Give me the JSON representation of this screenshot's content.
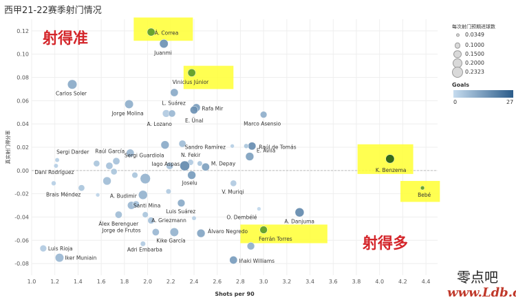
{
  "title": "西甲21-22赛季射门情况",
  "annotations": {
    "top_left": "射得准",
    "bottom_right": "射得多"
  },
  "legend_size": {
    "title": "每次射门预期进球数",
    "items": [
      "0.0349",
      "0.1000",
      "0.1500",
      "0.2000",
      "0.2323"
    ]
  },
  "legend_color": {
    "title": "Goals",
    "min": "0",
    "max": "27"
  },
  "watermark": {
    "line1": "零点吧",
    "line2": "www.Ldb.cc"
  },
  "chart_data": {
    "type": "scatter",
    "xlabel": "Shots per 90",
    "ylabel": "真实射门得分率",
    "xlim": [
      1.0,
      4.5
    ],
    "ylim": [
      -0.09,
      0.13
    ],
    "x_ticks": [
      "1.0",
      "1.2",
      "1.4",
      "1.6",
      "1.8",
      "2.0",
      "2.2",
      "2.4",
      "2.6",
      "2.8",
      "3.0",
      "3.2",
      "3.4",
      "3.6",
      "3.8",
      "4.0",
      "4.2",
      "4.4"
    ],
    "y_ticks": [
      "0.12",
      "0.10",
      "0.08",
      "0.06",
      "0.04",
      "0.02",
      "0.00",
      "-0.02",
      "-0.04",
      "-0.06",
      "-0.08"
    ],
    "color_scale": {
      "low": "#c6dcef",
      "high": "#2b5c8a",
      "highlight": "#5a9a2a"
    },
    "points": [
      {
        "name": "Á. Correa",
        "x": 2.03,
        "y": 0.119,
        "xg": 0.15,
        "goals": 9,
        "highlight": true
      },
      {
        "name": "Juanmi",
        "x": 2.14,
        "y": 0.109,
        "xg": 0.17,
        "goals": 16
      },
      {
        "name": "Vinicius Júnior",
        "x": 2.38,
        "y": 0.084,
        "xg": 0.15,
        "goals": 17,
        "highlight": true
      },
      {
        "name": "Carlos Soler",
        "x": 1.35,
        "y": 0.074,
        "xg": 0.19,
        "goals": 11
      },
      {
        "name": "L. Suárez",
        "x": 2.23,
        "y": 0.067,
        "xg": 0.15,
        "goals": 11
      },
      {
        "name": "Jorge Molina",
        "x": 1.84,
        "y": 0.057,
        "xg": 0.17,
        "goals": 10
      },
      {
        "name": "Rafa Mir",
        "x": 2.42,
        "y": 0.054,
        "xg": 0.15,
        "goals": 14
      },
      {
        "name": "E. Ünal",
        "x": 2.4,
        "y": 0.052,
        "xg": 0.15,
        "goals": 16
      },
      {
        "name": "A. Lozano",
        "x": 2.16,
        "y": 0.049,
        "xg": 0.14,
        "goals": 4
      },
      {
        "name": "A. Lozano 2",
        "x": 2.21,
        "y": 0.049,
        "xg": 0.13,
        "goals": 8
      },
      {
        "name": "Marco Asensio",
        "x": 3.0,
        "y": 0.048,
        "xg": 0.12,
        "goals": 10
      },
      {
        "name": "Sandro Ramírez",
        "x": 2.73,
        "y": 0.021,
        "xg": 0.05,
        "goals": 3
      },
      {
        "name": "Raúl de Tomás",
        "x": 2.9,
        "y": 0.021,
        "xg": 0.15,
        "goals": 17
      },
      {
        "name": "p_sr2",
        "x": 2.85,
        "y": 0.021,
        "xg": 0.07,
        "goals": 5
      },
      {
        "name": "Sergi Guardiola",
        "x": 2.15,
        "y": 0.022,
        "xg": 0.16,
        "goals": 11
      },
      {
        "name": "p_sg2",
        "x": 2.3,
        "y": 0.023,
        "xg": 0.13,
        "goals": 7
      },
      {
        "name": "E. Ávila",
        "x": 2.88,
        "y": 0.012,
        "xg": 0.16,
        "goals": 13
      },
      {
        "name": "Raúl García",
        "x": 1.85,
        "y": 0.015,
        "xg": 0.15,
        "goals": 8
      },
      {
        "name": "Sergi Darder",
        "x": 1.22,
        "y": 0.009,
        "xg": 0.06,
        "goals": 3
      },
      {
        "name": "p_rg2",
        "x": 1.73,
        "y": 0.008,
        "xg": 0.13,
        "goals": 6
      },
      {
        "name": "N. Fekir",
        "x": 2.37,
        "y": 0.007,
        "xg": 0.1,
        "goals": 4
      },
      {
        "name": "Iago Aspas",
        "x": 2.32,
        "y": 0.004,
        "xg": 0.2,
        "goals": 18
      },
      {
        "name": "M. Depay",
        "x": 2.5,
        "y": 0.003,
        "xg": 0.15,
        "goals": 13
      },
      {
        "name": "p_ia2",
        "x": 2.19,
        "y": 0.004,
        "xg": 0.13,
        "goals": 6
      },
      {
        "name": "p_ia3",
        "x": 2.45,
        "y": 0.006,
        "xg": 0.08,
        "goals": 5
      },
      {
        "name": "Dani Rodríguez",
        "x": 1.21,
        "y": 0.004,
        "xg": 0.06,
        "goals": 3
      },
      {
        "name": "p_dr2",
        "x": 1.56,
        "y": 0.006,
        "xg": 0.11,
        "goals": 5
      },
      {
        "name": "p_dr3",
        "x": 1.67,
        "y": 0.004,
        "xg": 0.13,
        "goals": 6
      },
      {
        "name": "Joselu",
        "x": 2.38,
        "y": -0.004,
        "xg": 0.16,
        "goals": 14
      },
      {
        "name": "p_js2",
        "x": 1.89,
        "y": -0.004,
        "xg": 0.1,
        "goals": 5
      },
      {
        "name": "p_js3",
        "x": 1.71,
        "y": -0.001,
        "xg": 0.11,
        "goals": 5
      },
      {
        "name": "p_js4",
        "x": 1.98,
        "y": -0.007,
        "xg": 0.21,
        "goals": 9
      },
      {
        "name": "p_js5",
        "x": 1.65,
        "y": -0.009,
        "xg": 0.16,
        "goals": 7
      },
      {
        "name": "K. Benzema",
        "x": 4.09,
        "y": 0.01,
        "xg": 0.17,
        "goals": 27,
        "highlight": true
      },
      {
        "name": "Bebé",
        "x": 4.37,
        "y": -0.015,
        "xg": 0.05,
        "goals": 4,
        "highlight": true
      },
      {
        "name": "V. Muriqi",
        "x": 2.74,
        "y": -0.011,
        "xg": 0.11,
        "goals": 4
      },
      {
        "name": "Brais Méndez",
        "x": 1.19,
        "y": -0.011,
        "xg": 0.07,
        "goals": 3
      },
      {
        "name": "p_bm2",
        "x": 1.43,
        "y": -0.015,
        "xg": 0.11,
        "goals": 5
      },
      {
        "name": "p_bm3",
        "x": 1.57,
        "y": -0.021,
        "xg": 0.05,
        "goals": 2
      },
      {
        "name": "A. Budimir",
        "x": 1.96,
        "y": -0.021,
        "xg": 0.18,
        "goals": 9
      },
      {
        "name": "p_ab2",
        "x": 2.18,
        "y": -0.018,
        "xg": 0.08,
        "goals": 4
      },
      {
        "name": "Santi Mina",
        "x": 1.86,
        "y": -0.03,
        "xg": 0.15,
        "goals": 8
      },
      {
        "name": "p_sm2",
        "x": 1.9,
        "y": -0.029,
        "xg": 0.12,
        "goals": 6
      },
      {
        "name": "Luis Suárez",
        "x": 2.29,
        "y": -0.028,
        "xg": 0.14,
        "goals": 11
      },
      {
        "name": "O. Dembélé",
        "x": 2.96,
        "y": -0.033,
        "xg": 0.05,
        "goals": 1
      },
      {
        "name": "A. Danjuma",
        "x": 3.31,
        "y": -0.036,
        "xg": 0.18,
        "goals": 18
      },
      {
        "name": "Álex Berenguer",
        "x": 1.75,
        "y": -0.038,
        "xg": 0.13,
        "goals": 7
      },
      {
        "name": "A. Griezmann",
        "x": 1.98,
        "y": -0.038,
        "xg": 0.1,
        "goals": 5
      },
      {
        "name": "p_ag2",
        "x": 2.4,
        "y": -0.041,
        "xg": 0.06,
        "goals": 3
      },
      {
        "name": "p_ag3",
        "x": 2.03,
        "y": -0.043,
        "xg": 0.12,
        "goals": 6
      },
      {
        "name": "Jorge de Frutos",
        "x": 2.07,
        "y": -0.053,
        "xg": 0.13,
        "goals": 8
      },
      {
        "name": "Kike García",
        "x": 2.23,
        "y": -0.053,
        "xg": 0.17,
        "goals": 9
      },
      {
        "name": "Álvaro Negredo",
        "x": 2.46,
        "y": -0.054,
        "xg": 0.16,
        "goals": 12
      },
      {
        "name": "Ferrán Torres",
        "x": 3.0,
        "y": -0.051,
        "xg": 0.14,
        "goals": 8,
        "highlight": true
      },
      {
        "name": "Adri Embarba",
        "x": 1.96,
        "y": -0.063,
        "xg": 0.08,
        "goals": 4
      },
      {
        "name": "p_ft2",
        "x": 2.89,
        "y": -0.065,
        "xg": 0.14,
        "goals": 10
      },
      {
        "name": "Luis Rioja",
        "x": 1.1,
        "y": -0.067,
        "xg": 0.12,
        "goals": 4
      },
      {
        "name": "Iker Muniain",
        "x": 1.24,
        "y": -0.075,
        "xg": 0.17,
        "goals": 8
      },
      {
        "name": "Iñaki Williams",
        "x": 2.74,
        "y": -0.077,
        "xg": 0.15,
        "goals": 14
      }
    ],
    "labels": [
      {
        "text": "Á. Correa",
        "x": 2.03,
        "y": 0.119,
        "dx": 5,
        "dy": 4
      },
      {
        "text": "Juanmi",
        "x": 2.14,
        "y": 0.109,
        "dx": -14,
        "dy": 16
      },
      {
        "text": "Vinicius Júnior",
        "x": 2.38,
        "y": 0.084,
        "dx": -28,
        "dy": 16
      },
      {
        "text": "Carlos Soler",
        "x": 1.35,
        "y": 0.074,
        "dx": -24,
        "dy": 16
      },
      {
        "text": "L. Suárez",
        "x": 2.23,
        "y": 0.067,
        "dx": -18,
        "dy": 18
      },
      {
        "text": "Jorge Molina",
        "x": 1.84,
        "y": 0.057,
        "dx": -25,
        "dy": 16
      },
      {
        "text": "Rafa Mir",
        "x": 2.42,
        "y": 0.054,
        "dx": 8,
        "dy": 4
      },
      {
        "text": "E. Ünal",
        "x": 2.4,
        "y": 0.052,
        "dx": -13,
        "dy": 18
      },
      {
        "text": "A. Lozano",
        "x": 2.16,
        "y": 0.049,
        "dx": -28,
        "dy": 18
      },
      {
        "text": "Marco Asensio",
        "x": 3.0,
        "y": 0.048,
        "dx": -29,
        "dy": 16
      },
      {
        "text": "Sandro Ramírez",
        "x": 2.73,
        "y": 0.021,
        "dx": -69,
        "dy": 4
      },
      {
        "text": "Raúl de Tomás",
        "x": 2.9,
        "y": 0.021,
        "dx": 10,
        "dy": 4
      },
      {
        "text": "Sergi Guardiola",
        "x": 2.15,
        "y": 0.022,
        "dx": -59,
        "dy": 18
      },
      {
        "text": "E. Ávila",
        "x": 2.88,
        "y": 0.012,
        "dx": 10,
        "dy": -6
      },
      {
        "text": "Raúl García",
        "x": 1.85,
        "y": 0.015,
        "dx": -51,
        "dy": 0
      },
      {
        "text": "Sergi Darder",
        "x": 1.22,
        "y": 0.009,
        "dx": -1,
        "dy": -9
      },
      {
        "text": "N. Fekir",
        "x": 2.37,
        "y": 0.007,
        "dx": -14,
        "dy": -8
      },
      {
        "text": "Iago Aspas",
        "x": 2.32,
        "y": 0.004,
        "dx": -48,
        "dy": 0
      },
      {
        "text": "M. Depay",
        "x": 2.5,
        "y": 0.003,
        "dx": 8,
        "dy": -2
      },
      {
        "text": "Dani Rodríguez",
        "x": 1.21,
        "y": 0.004,
        "dx": -31,
        "dy": 12
      },
      {
        "text": "Joselu",
        "x": 2.38,
        "y": -0.004,
        "dx": -14,
        "dy": 14
      },
      {
        "text": "K. Benzema",
        "x": 4.09,
        "y": 0.01,
        "dx": -21,
        "dy": 19
      },
      {
        "text": "Bebé",
        "x": 4.37,
        "y": -0.015,
        "dx": -7,
        "dy": 13
      },
      {
        "text": "V. Muriqi",
        "x": 2.74,
        "y": -0.011,
        "dx": -17,
        "dy": 15
      },
      {
        "text": "Brais Méndez",
        "x": 1.19,
        "y": -0.011,
        "dx": -11,
        "dy": 19
      },
      {
        "text": "A. Budimir",
        "x": 1.96,
        "y": -0.021,
        "dx": -48,
        "dy": 4
      },
      {
        "text": "Santi Mina",
        "x": 1.86,
        "y": -0.03,
        "dx": 3,
        "dy": 3
      },
      {
        "text": "Luis Suárez",
        "x": 2.29,
        "y": -0.028,
        "dx": -22,
        "dy": 15
      },
      {
        "text": "O. Dembélé",
        "x": 2.96,
        "y": -0.033,
        "dx": -47,
        "dy": 15
      },
      {
        "text": "A. Danjuma",
        "x": 3.31,
        "y": -0.036,
        "dx": -22,
        "dy": 16
      },
      {
        "text": "Álex Berenguer",
        "x": 1.75,
        "y": -0.038,
        "dx": -29,
        "dy": 16
      },
      {
        "text": "A. Griezmann",
        "x": 1.98,
        "y": -0.038,
        "dx": 9,
        "dy": 11
      },
      {
        "text": "Jorge de Frutos",
        "x": 2.07,
        "y": -0.053,
        "dx": -78,
        "dy": 0
      },
      {
        "text": "Kike García",
        "x": 2.23,
        "y": -0.053,
        "dx": -26,
        "dy": 15
      },
      {
        "text": "Álvaro Negredo",
        "x": 2.46,
        "y": -0.054,
        "dx": 10,
        "dy": 0
      },
      {
        "text": "Ferrán Torres",
        "x": 3.0,
        "y": -0.051,
        "dx": -7,
        "dy": 16
      },
      {
        "text": "Adri Embarba",
        "x": 1.96,
        "y": -0.063,
        "dx": -23,
        "dy": 11
      },
      {
        "text": "Luis Rioja",
        "x": 1.1,
        "y": -0.067,
        "dx": 7,
        "dy": 3
      },
      {
        "text": "Iker Muniain",
        "x": 1.24,
        "y": -0.075,
        "dx": 8,
        "dy": 3
      },
      {
        "text": "Iñaki Williams",
        "x": 2.74,
        "y": -0.077,
        "dx": 8,
        "dy": 4
      }
    ],
    "highlight_boxes": [
      {
        "x0": 1.88,
        "x1": 2.39,
        "y0": 0.1115,
        "y1": 0.1315
      },
      {
        "x0": 2.31,
        "x1": 2.74,
        "y0": 0.07,
        "y1": 0.09
      },
      {
        "x0": 3.81,
        "x1": 4.29,
        "y0": -0.003,
        "y1": 0.0225
      },
      {
        "x0": 4.18,
        "x1": 4.52,
        "y0": -0.027,
        "y1": -0.009
      },
      {
        "x0": 2.8,
        "x1": 3.55,
        "y0": -0.0625,
        "y1": -0.0465
      }
    ],
    "reference_line_y": 0.0,
    "grid": true
  }
}
